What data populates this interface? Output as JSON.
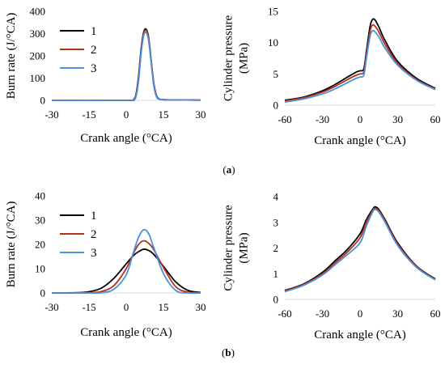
{
  "colors": {
    "series_1": "#000000",
    "series_2": "#b5301a",
    "series_3": "#4a8fe0"
  },
  "panel_labels": [
    {
      "open": "(",
      "letter": "a",
      "close": ")"
    },
    {
      "open": "(",
      "letter": "b",
      "close": ")"
    }
  ],
  "chart_data": [
    {
      "type": "line",
      "xlabel": "Crank angle (°CA)",
      "ylabel": "Burn rate (J/°CA)",
      "xlim": [
        -30,
        30
      ],
      "ylim": [
        0,
        400
      ],
      "xticks": [
        -30,
        -15,
        0,
        15,
        30
      ],
      "yticks": [
        0,
        100,
        200,
        300,
        400
      ],
      "grid": false,
      "legend": "top-left",
      "series": [
        {
          "name": "1",
          "x": [
            -30,
            0,
            3,
            4,
            5,
            6,
            7,
            8,
            9,
            10,
            11,
            12,
            13,
            15,
            20,
            30
          ],
          "y": [
            0,
            0,
            5,
            30,
            110,
            230,
            305,
            320,
            285,
            185,
            85,
            28,
            8,
            3,
            2,
            1
          ]
        },
        {
          "name": "2",
          "x": [
            -30,
            0,
            3,
            4,
            5,
            6,
            7,
            8,
            9,
            10,
            11,
            12,
            13,
            15,
            20,
            30
          ],
          "y": [
            0,
            0,
            4,
            25,
            100,
            220,
            298,
            315,
            280,
            180,
            80,
            25,
            7,
            3,
            2,
            1
          ]
        },
        {
          "name": "3",
          "x": [
            -30,
            0,
            3,
            4,
            5,
            6,
            7,
            8,
            9,
            10,
            11,
            12,
            13,
            15,
            20,
            30
          ],
          "y": [
            0,
            0,
            3,
            20,
            90,
            210,
            290,
            305,
            270,
            175,
            75,
            22,
            6,
            3,
            2,
            1
          ]
        }
      ]
    },
    {
      "type": "line",
      "xlabel": "Crank angle (°CA)",
      "ylabel": "Cylinder pressure (MPa)",
      "xlim": [
        -60,
        60
      ],
      "ylim": [
        0,
        15
      ],
      "xticks": [
        -60,
        -30,
        0,
        30,
        60
      ],
      "yticks": [
        0,
        5,
        10,
        15
      ],
      "grid": false,
      "series": [
        {
          "name": "1",
          "x": [
            -60,
            -45,
            -30,
            -20,
            -10,
            -3,
            0,
            3,
            5,
            8,
            10,
            12,
            15,
            20,
            30,
            45,
            60
          ],
          "y": [
            0.8,
            1.3,
            2.3,
            3.3,
            4.5,
            5.3,
            5.5,
            5.8,
            8.5,
            12.6,
            13.7,
            13.6,
            12.5,
            10.3,
            7.0,
            4.3,
            2.7
          ]
        },
        {
          "name": "2",
          "x": [
            -60,
            -45,
            -30,
            -20,
            -10,
            -3,
            0,
            3,
            5,
            8,
            10,
            12,
            15,
            20,
            30,
            45,
            60
          ],
          "y": [
            0.7,
            1.2,
            2.1,
            3.0,
            4.1,
            4.8,
            5.0,
            5.3,
            8.0,
            11.8,
            12.8,
            12.6,
            11.7,
            9.7,
            6.7,
            4.1,
            2.6
          ]
        },
        {
          "name": "3",
          "x": [
            -60,
            -45,
            -30,
            -20,
            -10,
            -3,
            0,
            3,
            5,
            8,
            10,
            12,
            15,
            20,
            30,
            45,
            60
          ],
          "y": [
            0.5,
            1.0,
            1.8,
            2.6,
            3.6,
            4.3,
            4.5,
            4.8,
            7.4,
            11.0,
            11.9,
            11.7,
            10.9,
            9.1,
            6.4,
            4.0,
            2.5
          ]
        }
      ]
    },
    {
      "type": "line",
      "xlabel": "Crank angle (°CA)",
      "ylabel": "Burn rate (J/°CA)",
      "xlim": [
        -30,
        30
      ],
      "ylim": [
        0,
        40
      ],
      "xticks": [
        -30,
        -15,
        0,
        15,
        30
      ],
      "yticks": [
        0,
        10,
        20,
        30,
        40
      ],
      "grid": false,
      "legend": "top-left",
      "series": [
        {
          "name": "1",
          "x": [
            -30,
            -20,
            -15,
            -10,
            -5,
            0,
            3,
            5,
            7,
            9,
            11,
            15,
            20,
            25,
            30
          ],
          "y": [
            0,
            0.1,
            0.5,
            2,
            6,
            12,
            15.5,
            17,
            18,
            17.5,
            16,
            11,
            4.5,
            1,
            0.2
          ]
        },
        {
          "name": "2",
          "x": [
            -30,
            -20,
            -15,
            -10,
            -5,
            0,
            3,
            5,
            7,
            9,
            11,
            15,
            20,
            25,
            30
          ],
          "y": [
            0,
            0,
            0.1,
            0.6,
            3,
            10,
            16.5,
            20,
            21.5,
            20.5,
            18,
            10.5,
            2.5,
            0.3,
            0
          ]
        },
        {
          "name": "3",
          "x": [
            -30,
            -20,
            -15,
            -10,
            -5,
            0,
            3,
            5,
            7,
            9,
            11,
            15,
            20,
            25,
            30
          ],
          "y": [
            0,
            0,
            0,
            0.1,
            1.5,
            7.5,
            17,
            23,
            26,
            24.5,
            19,
            8,
            1,
            0,
            0
          ]
        }
      ]
    },
    {
      "type": "line",
      "xlabel": "Crank angle (°CA)",
      "ylabel": "Cylinder pressure (MPa)",
      "xlim": [
        -60,
        60
      ],
      "ylim": [
        0,
        4
      ],
      "xticks": [
        -60,
        -30,
        0,
        30,
        60
      ],
      "yticks": [
        0,
        1,
        2,
        3,
        4
      ],
      "grid": false,
      "series": [
        {
          "name": "1",
          "x": [
            -60,
            -45,
            -30,
            -20,
            -10,
            0,
            5,
            10,
            12,
            15,
            20,
            30,
            45,
            60
          ],
          "y": [
            0.35,
            0.6,
            1.05,
            1.5,
            1.95,
            2.55,
            3.1,
            3.5,
            3.6,
            3.5,
            3.1,
            2.2,
            1.3,
            0.8
          ]
        },
        {
          "name": "2",
          "x": [
            -60,
            -45,
            -30,
            -20,
            -10,
            0,
            5,
            10,
            12,
            15,
            20,
            30,
            45,
            60
          ],
          "y": [
            0.33,
            0.58,
            1.0,
            1.42,
            1.85,
            2.4,
            3.0,
            3.45,
            3.55,
            3.45,
            3.05,
            2.15,
            1.28,
            0.78
          ]
        },
        {
          "name": "3",
          "x": [
            -60,
            -45,
            -30,
            -20,
            -10,
            0,
            5,
            10,
            12,
            15,
            20,
            30,
            45,
            60
          ],
          "y": [
            0.3,
            0.55,
            0.95,
            1.35,
            1.75,
            2.2,
            2.85,
            3.4,
            3.5,
            3.4,
            3.0,
            2.1,
            1.25,
            0.76
          ]
        }
      ]
    }
  ]
}
